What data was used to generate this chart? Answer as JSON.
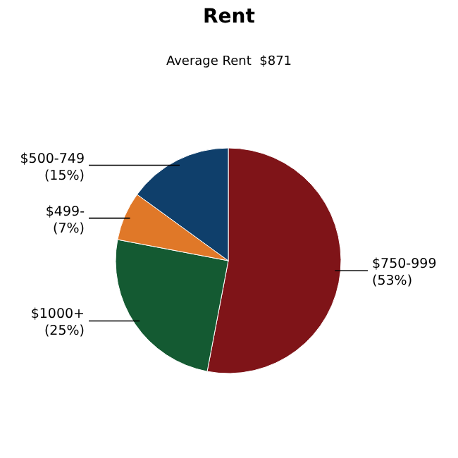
{
  "chart_data": {
    "type": "pie",
    "title": "Rent",
    "subtitle": "Average Rent  $871",
    "categories": [
      "$750-999",
      "$1000+",
      "$499-",
      "$500-749"
    ],
    "values": [
      53,
      25,
      7,
      15
    ],
    "value_labels": [
      "(53%)",
      "(25%)",
      "(7%)",
      "(15%)"
    ],
    "colors": [
      "#7f1418",
      "#145a32",
      "#e07828",
      "#0f3f6b"
    ],
    "legend": false
  }
}
